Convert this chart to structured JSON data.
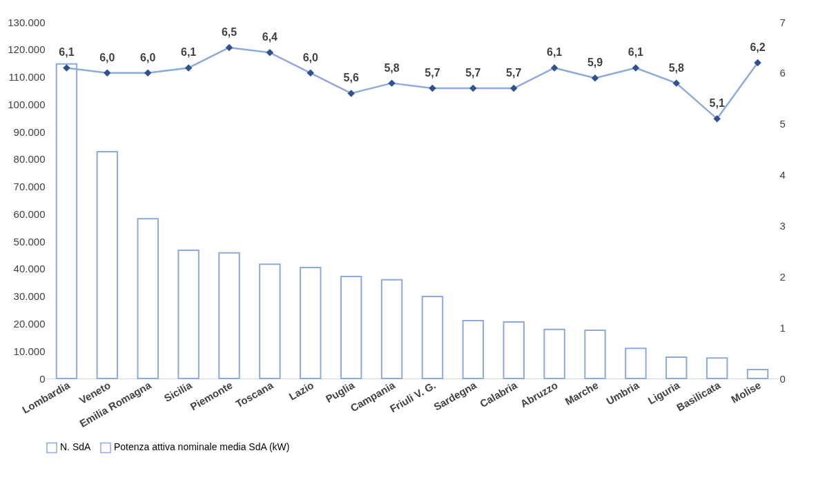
{
  "chart_data": {
    "type": "bar",
    "categories": [
      "Lombardia",
      "Veneto",
      "Emilia Romagna",
      "Sicilia",
      "Piemonte",
      "Toscana",
      "Lazio",
      "Puglia",
      "Campania",
      "Friuli V. G.",
      "Sardegna",
      "Calabria",
      "Abruzzo",
      "Marche",
      "Umbria",
      "Liguria",
      "Basilicata",
      "Molise"
    ],
    "series": [
      {
        "name": "N. SdA",
        "color": "#8eaadb",
        "values": [
          114700,
          82700,
          58300,
          46800,
          45800,
          41700,
          40500,
          37200,
          36000,
          29900,
          21100,
          20600,
          17900,
          17600,
          11000,
          7800,
          7500,
          3300
        ]
      },
      {
        "name": "Potenza attiva nominale media SdA (kW)",
        "type": "line",
        "axis": "y2",
        "color": "#8eaadb",
        "colors": [
          "#2f528f",
          "#2f528f",
          "#2f528f",
          "#2f528f",
          "#2f528f",
          "#2f528f",
          "#2f528f",
          "#2f528f",
          "#2f528f",
          "#2f528f",
          "#2f528f",
          "#2f528f",
          "#2f528f",
          "#2f528f",
          "#2f528f",
          "#2f528f",
          "#2f528f",
          "#2f528f"
        ],
        "marker": "diamond",
        "values": [
          6.1,
          6.0,
          6.0,
          6.1,
          6.5,
          6.4,
          6.0,
          5.6,
          5.8,
          5.7,
          5.7,
          5.7,
          6.1,
          5.9,
          6.1,
          5.8,
          5.1,
          6.2
        ],
        "value_labels": [
          "6,1",
          "6,0",
          "6,0",
          "6,1",
          "6,5",
          "6,4",
          "6,0",
          "5,6",
          "5,8",
          "5,7",
          "5,7",
          "5,7",
          "6,1",
          "5,9",
          "6,1",
          "5,8",
          "5,1",
          "6,2"
        ]
      }
    ],
    "ylim": [
      0,
      130000
    ],
    "yticks": [
      {
        "value": 0,
        "label": "0"
      },
      {
        "value": 10000,
        "label": "10.000"
      },
      {
        "value": 20000,
        "label": "20.000"
      },
      {
        "value": 30000,
        "label": "30.000"
      },
      {
        "value": 40000,
        "label": "40.000"
      },
      {
        "value": 50000,
        "label": "50.000"
      },
      {
        "value": 60000,
        "label": "60.000"
      },
      {
        "value": 70000,
        "label": "70.000"
      },
      {
        "value": 80000,
        "label": "80.000"
      },
      {
        "value": 90000,
        "label": "90.000"
      },
      {
        "value": 100000,
        "label": "100.000"
      },
      {
        "value": 110000,
        "label": "110.000"
      },
      {
        "value": 120000,
        "label": "120.000"
      },
      {
        "value": 130000,
        "label": "130.000"
      }
    ],
    "y2lim": [
      0,
      7
    ],
    "y2ticks": [
      0,
      1,
      2,
      3,
      4,
      5,
      6,
      7
    ],
    "grid": false,
    "legend": "bottom"
  }
}
